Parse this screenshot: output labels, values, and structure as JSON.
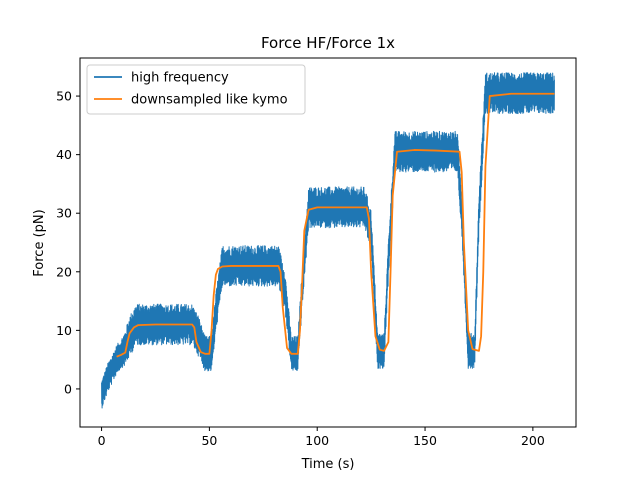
{
  "chart_data": {
    "type": "line",
    "title": "Force HF/Force 1x",
    "xlabel": "Time (s)",
    "ylabel": "Force (pN)",
    "xlim": [
      -10,
      220
    ],
    "ylim": [
      -6.5,
      56.5
    ],
    "xticks": [
      0,
      50,
      100,
      150,
      200
    ],
    "yticks": [
      0,
      10,
      20,
      30,
      40,
      50
    ],
    "grid": false,
    "legend_position": "top-left",
    "series": [
      {
        "name": "high frequency",
        "color": "#1f77b4",
        "style": "noisy band",
        "x": [
          0,
          3,
          7,
          9,
          11,
          13,
          16,
          42,
          45,
          48,
          51,
          53,
          56,
          82,
          85,
          88,
          91,
          93,
          96,
          122,
          125,
          128,
          131,
          133,
          136,
          165,
          167,
          170,
          173,
          175,
          178,
          210
        ],
        "y": [
          -1,
          2,
          5,
          6,
          7,
          9,
          11,
          11,
          9,
          6,
          6,
          13,
          21,
          21,
          17,
          6,
          6,
          17,
          31,
          31,
          27,
          6.5,
          6.5,
          22,
          40.5,
          40.5,
          30,
          6.5,
          6.5,
          30,
          50.5,
          50.5
        ],
        "band_halfwidth": [
          2.5,
          2.5,
          2.5,
          2.5,
          3,
          3.5,
          3.5,
          3.5,
          3.5,
          3,
          3,
          3.5,
          3.5,
          3.5,
          3.5,
          3,
          3,
          3.5,
          3.5,
          3.5,
          3.5,
          3,
          3,
          3.5,
          3.5,
          3.5,
          3.5,
          3,
          3,
          3.5,
          3.5,
          3.5
        ]
      },
      {
        "name": "downsampled like kymo",
        "color": "#ff7f0e",
        "x": [
          7,
          9,
          11,
          12,
          13,
          15,
          17,
          25,
          35,
          42,
          43,
          44,
          46,
          48,
          50,
          51,
          52,
          53,
          54,
          56,
          60,
          70,
          82,
          83,
          84,
          86,
          88,
          91,
          92,
          93,
          94,
          96,
          100,
          110,
          123,
          124,
          125,
          127,
          129,
          131,
          133,
          134,
          135,
          137,
          145,
          155,
          166,
          167,
          168,
          170,
          172,
          175,
          176,
          177,
          178,
          180,
          190,
          210
        ],
        "y": [
          5.5,
          5.8,
          6.2,
          8,
          9.5,
          10.5,
          10.9,
          11,
          11,
          11,
          10.5,
          8,
          6.3,
          6,
          6,
          10,
          16,
          19.5,
          20.5,
          20.9,
          21,
          21,
          21,
          20,
          14,
          7,
          6,
          6,
          10,
          18,
          27,
          30.6,
          31,
          31,
          31,
          29,
          20,
          9,
          6.7,
          6.5,
          8,
          20,
          33,
          40.5,
          40.8,
          40.7,
          40.5,
          37,
          25,
          10,
          6.8,
          6.5,
          9,
          20,
          38,
          50,
          50.4,
          50.4
        ]
      }
    ]
  }
}
